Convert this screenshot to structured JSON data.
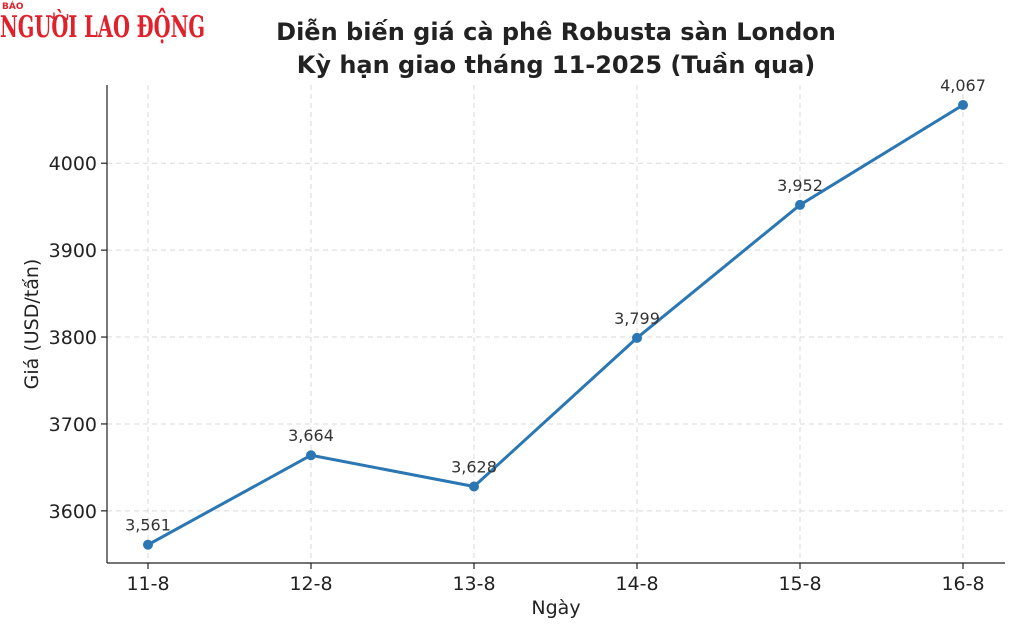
{
  "logo": {
    "small_text": "BÁO",
    "main_text": "NGƯỜI LAO ĐỘNG",
    "color": "#e0202a"
  },
  "chart_data": {
    "type": "line",
    "title_line1": "Diễn biến giá cà phê Robusta sàn London",
    "title_line2": "Kỳ hạn giao tháng 11-2025 (Tuần qua)",
    "xlabel": "Ngày",
    "ylabel": "Giá (USD/tấn)",
    "categories": [
      "11-8",
      "12-8",
      "13-8",
      "14-8",
      "15-8",
      "16-8"
    ],
    "values": [
      3561,
      3664,
      3628,
      3799,
      3952,
      4067
    ],
    "data_labels": [
      "3,561",
      "3,664",
      "3,628",
      "3,799",
      "3,952",
      "4,067"
    ],
    "y_ticks": [
      3600,
      3700,
      3800,
      3900,
      4000
    ],
    "ylim": [
      3540,
      4090
    ],
    "grid": true,
    "line_color": "#2a77b4"
  }
}
